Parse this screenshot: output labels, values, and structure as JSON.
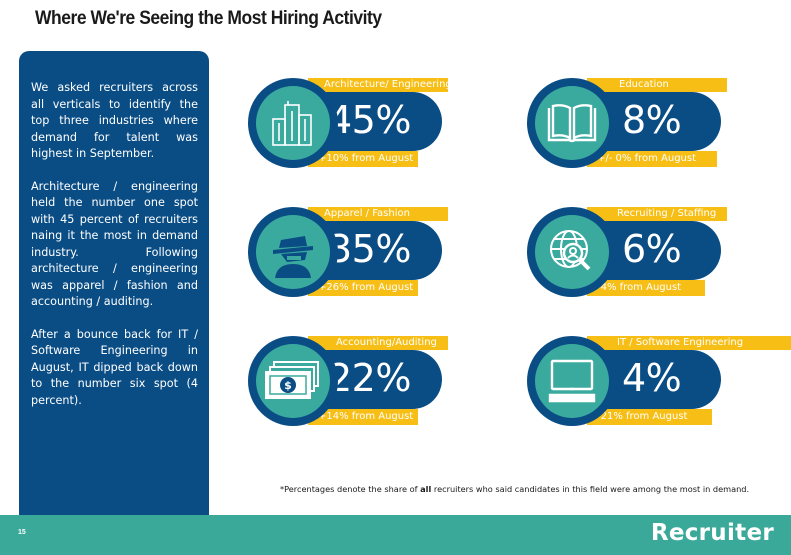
{
  "page": {
    "title": "Where We're Seeing the Most Hiring Activity",
    "page_number": "15",
    "brand": "Recruiter",
    "footnote_pre": "*Percentages denote the share of ",
    "footnote_bold": "all",
    "footnote_post": " recruiters who said candidates in this field were among the most in demand."
  },
  "sidebar": {
    "paragraphs": [
      "We asked recruiters across all verticals to identify the top three industries where demand for talent was highest in September.",
      "Architecture / engineering held the number one spot with 45 percent of recruiters naing it the most in demand industry. Following architecture / engineering was apparel / fashion and accounting / auditing.",
      "After a bounce back for IT / Software Engineering in August, IT dipped back down to the number six spot (4 percent)."
    ]
  },
  "industries": [
    {
      "label": "Architecture/ Engineering",
      "percent": "45%",
      "change": "+10% from August",
      "icon": "buildings-icon"
    },
    {
      "label": "Education",
      "percent": "8%",
      "change": "+/- 0% from August",
      "icon": "book-icon"
    },
    {
      "label": "Apparel / Fashion",
      "percent": "35%",
      "change": "+26% from August",
      "icon": "detective-icon"
    },
    {
      "label": "Recruiting / Staffing",
      "percent": "6%",
      "change": "-4% from August",
      "icon": "globe-search-icon"
    },
    {
      "label": "Accounting/Auditing",
      "percent": "22%",
      "change": "+14% from August",
      "icon": "money-icon"
    },
    {
      "label": "IT / Software Engineering",
      "percent": "4%",
      "change": "-21% from August",
      "icon": "computer-icon"
    }
  ],
  "colors": {
    "navy": "#0a4d85",
    "teal": "#3aaa9e",
    "yellow": "#f7be16"
  }
}
